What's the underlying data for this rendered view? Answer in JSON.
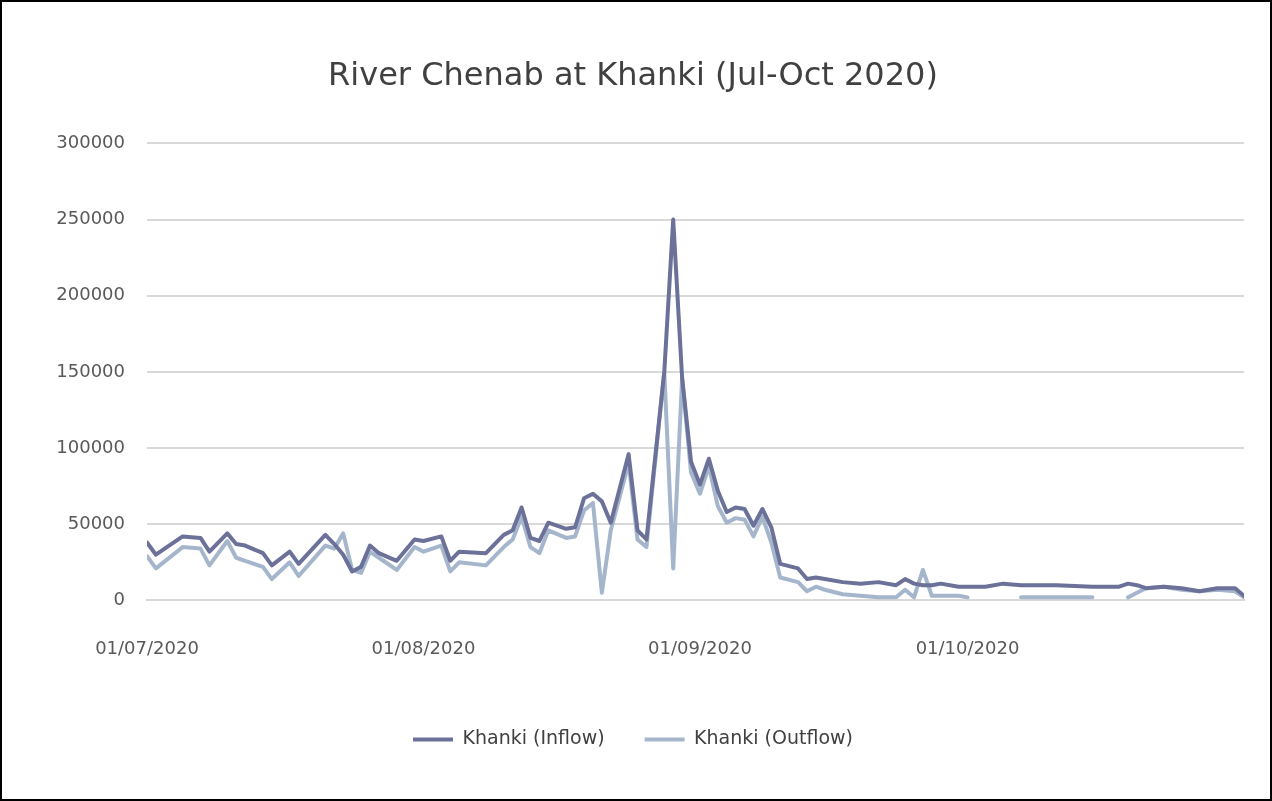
{
  "chart_data": {
    "type": "line",
    "title": "River Chenab at Khanki (Jul-Oct 2020)",
    "x": [
      "2020-07-01",
      "2020-07-02",
      "2020-07-05",
      "2020-07-07",
      "2020-07-08",
      "2020-07-10",
      "2020-07-11",
      "2020-07-12",
      "2020-07-14",
      "2020-07-15",
      "2020-07-17",
      "2020-07-18",
      "2020-07-21",
      "2020-07-22",
      "2020-07-23",
      "2020-07-24",
      "2020-07-25",
      "2020-07-26",
      "2020-07-27",
      "2020-07-29",
      "2020-07-31",
      "2020-08-01",
      "2020-08-03",
      "2020-08-04",
      "2020-08-05",
      "2020-08-08",
      "2020-08-10",
      "2020-08-11",
      "2020-08-12",
      "2020-08-13",
      "2020-08-14",
      "2020-08-15",
      "2020-08-17",
      "2020-08-18",
      "2020-08-19",
      "2020-08-20",
      "2020-08-21",
      "2020-08-22",
      "2020-08-24",
      "2020-08-25",
      "2020-08-26",
      "2020-08-28",
      "2020-08-29",
      "2020-08-30",
      "2020-08-31",
      "2020-09-01",
      "2020-09-02",
      "2020-09-03",
      "2020-09-04",
      "2020-09-05",
      "2020-09-06",
      "2020-09-07",
      "2020-09-08",
      "2020-09-09",
      "2020-09-10",
      "2020-09-12",
      "2020-09-13",
      "2020-09-14",
      "2020-09-15",
      "2020-09-17",
      "2020-09-19",
      "2020-09-21",
      "2020-09-23",
      "2020-09-24",
      "2020-09-25",
      "2020-09-26",
      "2020-09-27",
      "2020-09-28",
      "2020-09-30",
      "2020-10-01",
      "2020-10-03",
      "2020-10-05",
      "2020-10-07",
      "2020-10-11",
      "2020-10-15",
      "2020-10-16",
      "2020-10-18",
      "2020-10-19",
      "2020-10-20",
      "2020-10-21",
      "2020-10-23",
      "2020-10-25",
      "2020-10-27",
      "2020-10-29",
      "2020-10-31",
      "2020-11-01"
    ],
    "series": [
      {
        "name": "Khanki (Inflow)",
        "color": "#6b7199",
        "values": [
          38000,
          30000,
          42000,
          41000,
          32000,
          44000,
          37000,
          36000,
          31000,
          23000,
          32000,
          24000,
          43000,
          37000,
          30000,
          19000,
          22000,
          36000,
          31000,
          26000,
          40000,
          39000,
          42000,
          26000,
          32000,
          31000,
          43000,
          46000,
          61000,
          41000,
          39000,
          51000,
          47000,
          48000,
          67000,
          70000,
          65000,
          51000,
          96000,
          46000,
          40000,
          150000,
          250000,
          146000,
          91000,
          76000,
          93000,
          72000,
          58000,
          61000,
          60000,
          49000,
          60000,
          48000,
          24000,
          21000,
          14000,
          15000,
          14000,
          12000,
          11000,
          12000,
          10000,
          14000,
          11000,
          10000,
          10000,
          11000,
          9000,
          9000,
          9000,
          11000,
          10000,
          10000,
          9000,
          9000,
          9000,
          11000,
          10000,
          8000,
          9000,
          8000,
          6000,
          8000,
          8000,
          3000
        ]
      },
      {
        "name": "Khanki (Outflow)",
        "color": "#a5b6cc",
        "values": [
          29000,
          21000,
          35000,
          34000,
          23000,
          39000,
          28000,
          26000,
          22000,
          14000,
          25000,
          16000,
          36000,
          34000,
          44000,
          20000,
          18000,
          32000,
          28000,
          20000,
          35000,
          32000,
          36000,
          19000,
          25000,
          23000,
          35000,
          40000,
          55000,
          35000,
          31000,
          46000,
          41000,
          42000,
          59000,
          64000,
          5000,
          46000,
          90000,
          40000,
          35000,
          150000,
          21000,
          146000,
          84000,
          70000,
          88000,
          62000,
          51000,
          54000,
          53000,
          42000,
          55000,
          38000,
          15000,
          12000,
          6000,
          9000,
          7000,
          4000,
          3000,
          2000,
          2000,
          7000,
          2000,
          20000,
          3000,
          3000,
          3000,
          2000,
          null,
          null,
          2000,
          2000,
          2000,
          null,
          null,
          2000,
          5000,
          8000,
          9000,
          7000,
          6000,
          7000,
          6000,
          2000
        ]
      }
    ],
    "xlim": [
      "2020-07-01",
      "2020-11-01"
    ],
    "xticks": [
      {
        "value": "2020-07-01",
        "label": "01/07/2020"
      },
      {
        "value": "2020-08-01",
        "label": "01/08/2020"
      },
      {
        "value": "2020-09-01",
        "label": "01/09/2020"
      },
      {
        "value": "2020-10-01",
        "label": "01/10/2020"
      }
    ],
    "ylim": [
      0,
      300000
    ],
    "yticks": [
      0,
      50000,
      100000,
      150000,
      200000,
      250000,
      300000
    ],
    "grid": "y",
    "legend": "bottom",
    "marker": "none",
    "line_style": "solid"
  }
}
